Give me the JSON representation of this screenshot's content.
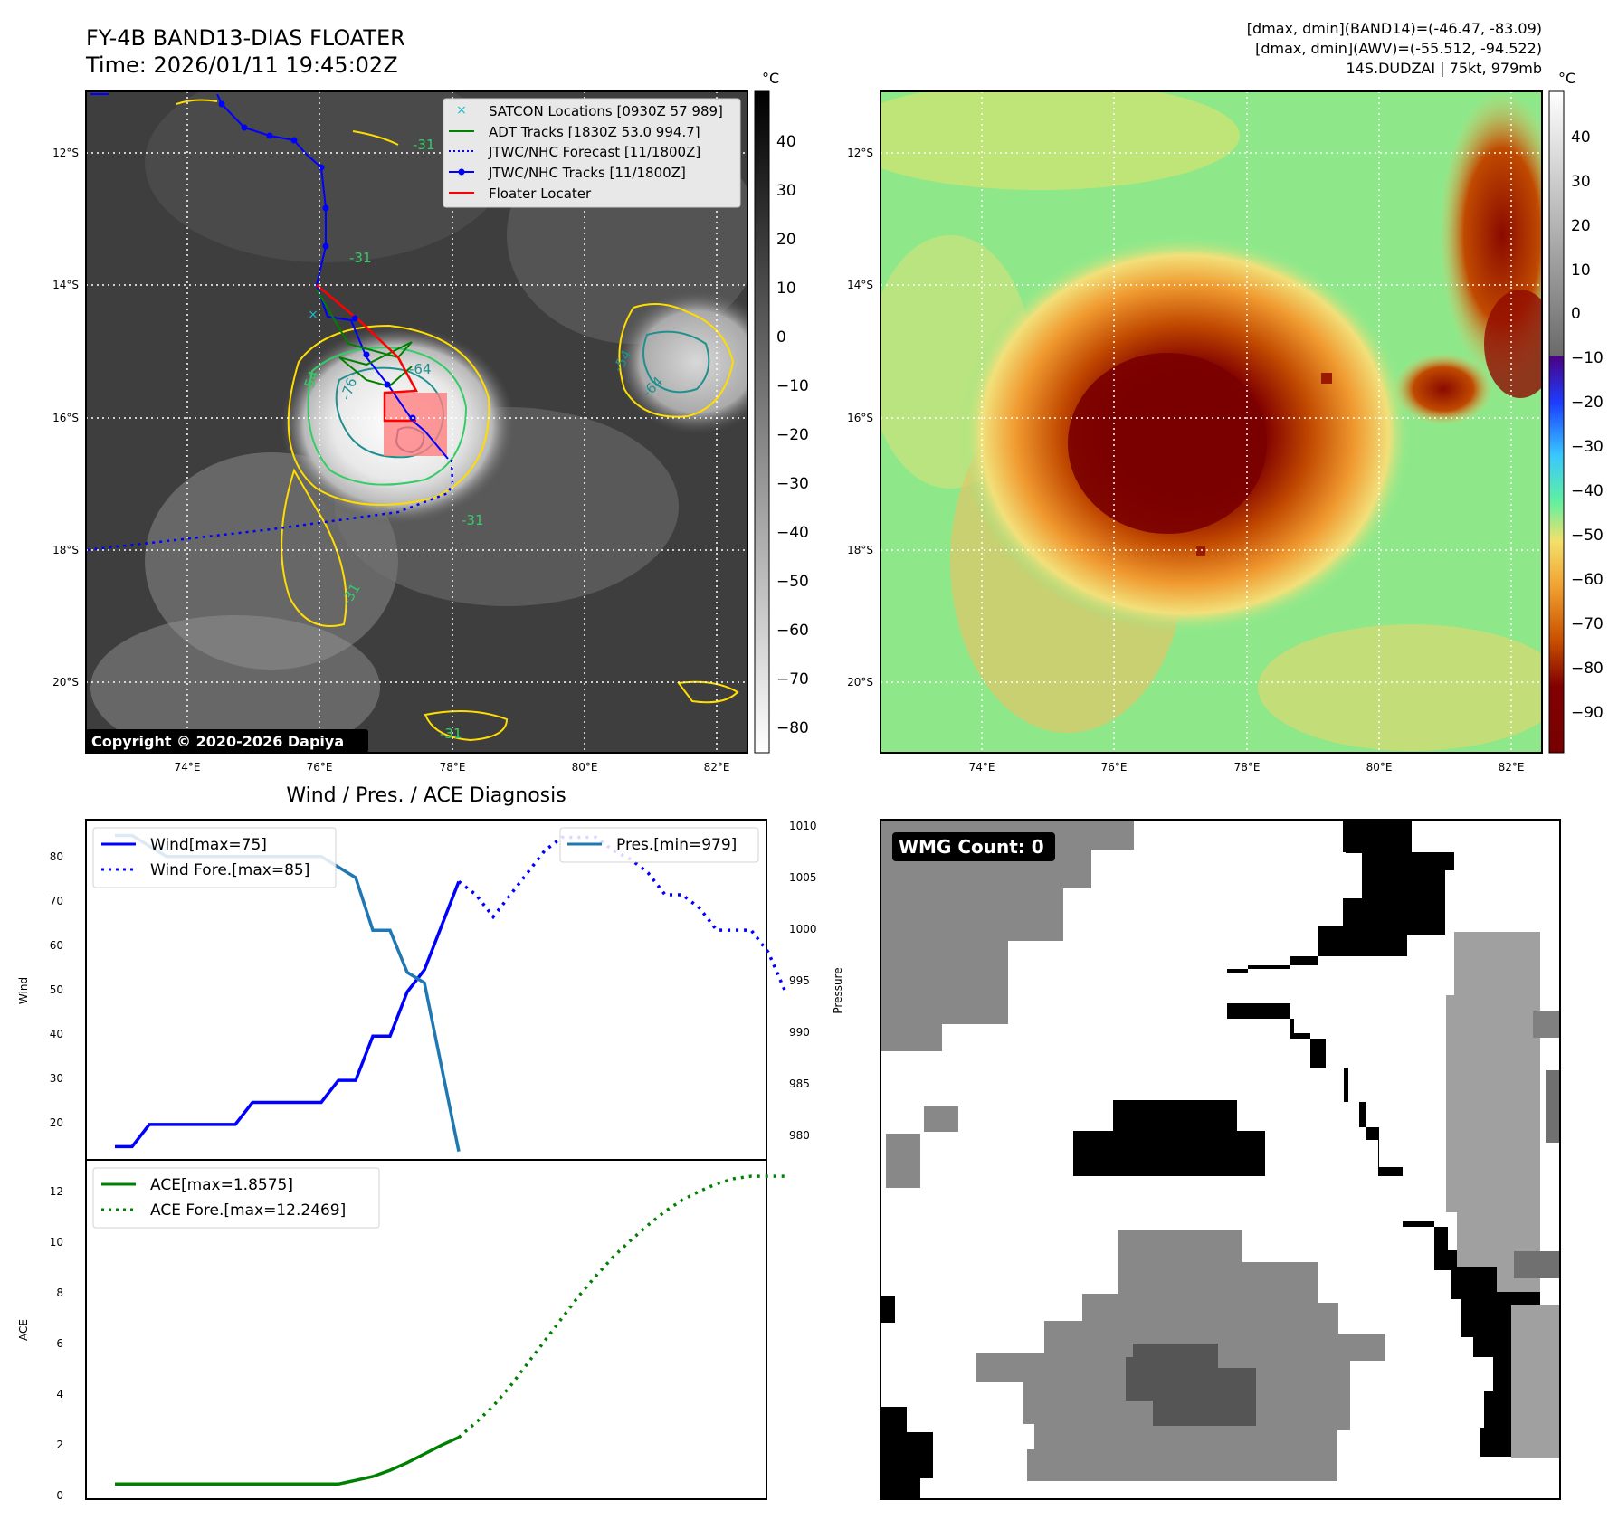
{
  "header": {
    "title": "FY-4B BAND13-DIAS FLOATER",
    "time": "Time: 2026/01/11 19:45:02Z",
    "info_line1": "[dmax, dmin](BAND14)=(-46.47, -83.09)",
    "info_line2": "[dmax, dmin](AWV)=(-55.512, -94.522)",
    "info_line3": "14S.DUDZAI | 75kt, 979mb"
  },
  "maps": {
    "lat_labels": [
      "12°S",
      "14°S",
      "16°S",
      "18°S",
      "20°S"
    ],
    "lon_labels": [
      "74°E",
      "76°E",
      "78°E",
      "80°E",
      "82°E"
    ],
    "copyright": "Copyright © 2020-2026 Dapiya",
    "contour_labels": [
      "-31",
      "-31",
      "-54",
      "-64",
      "-76",
      "-64",
      "-54",
      "-31",
      "-31",
      "-31"
    ],
    "legend": [
      {
        "label": "SATCON Locations [0930Z 57 989]",
        "color": "#17becf"
      },
      {
        "label": "ADT Tracks [1830Z 53.0 994.7]",
        "color": "#008000"
      },
      {
        "label": "JTWC/NHC Forecast [11/1800Z]",
        "color": "#0000ff"
      },
      {
        "label": "JTWC/NHC Tracks [11/1800Z]",
        "color": "#0000ff"
      },
      {
        "label": "Floater Locater",
        "color": "#ff0000"
      }
    ],
    "left_colorbar": {
      "unit": "°C",
      "ticks": [
        "40",
        "30",
        "20",
        "10",
        "0",
        "−10",
        "−20",
        "−30",
        "−40",
        "−50",
        "−60",
        "−70",
        "−80"
      ]
    },
    "right_colorbar": {
      "unit": "°C",
      "ticks": [
        "40",
        "30",
        "20",
        "10",
        "0",
        "−10",
        "−20",
        "−30",
        "−40",
        "−50",
        "−60",
        "−70",
        "−80",
        "−90"
      ]
    }
  },
  "diagnosis": {
    "title": "Wind / Pres. / ACE Diagnosis",
    "wind_ylabel": "Wind",
    "pres_ylabel": "Pressure",
    "ace_ylabel": "ACE",
    "legend_wind": "Wind[max=75]",
    "legend_wind_fore": "Wind Fore.[max=85]",
    "legend_pres": "Pres.[min=979]",
    "legend_ace": "ACE[max=1.8575]",
    "legend_ace_fore": "ACE Fore.[max=12.2469]",
    "wind_ticks": [
      "80",
      "70",
      "60",
      "50",
      "40",
      "30",
      "20"
    ],
    "pres_ticks": [
      "1010",
      "1005",
      "1000",
      "995",
      "990",
      "985",
      "980"
    ],
    "ace_ticks": [
      "12",
      "10",
      "8",
      "6",
      "4",
      "2",
      "0"
    ]
  },
  "wmg": {
    "label": "WMG Count: 0"
  },
  "chart_data": [
    {
      "type": "line",
      "title": "Wind / Pres. / ACE Diagnosis",
      "ylabel": "Wind",
      "ylim": [
        12,
        89
      ],
      "series": [
        {
          "name": "Wind[max=75]",
          "x": [
            0,
            1,
            2,
            3,
            4,
            5,
            6,
            7,
            8,
            9,
            10,
            11,
            12,
            13,
            14,
            15,
            16,
            17,
            18,
            19,
            20
          ],
          "values": [
            15,
            15,
            20,
            20,
            20,
            20,
            20,
            20,
            25,
            25,
            25,
            25,
            25,
            30,
            30,
            40,
            40,
            50,
            55,
            65,
            75
          ]
        },
        {
          "name": "Wind Fore.[max=85]",
          "x": [
            20,
            21,
            22,
            23,
            24,
            25,
            26,
            27,
            28,
            29,
            30,
            31,
            32,
            33,
            34,
            35,
            36,
            37,
            38,
            39
          ],
          "values": [
            75,
            72,
            67,
            72,
            77,
            82,
            85,
            85,
            85,
            82,
            80,
            77,
            72,
            72,
            69,
            64,
            64,
            64,
            59,
            50
          ]
        }
      ]
    },
    {
      "type": "line",
      "ylabel": "Pressure",
      "ylim": [
        978.2,
        1010.5
      ],
      "series": [
        {
          "name": "Pres.[min=979]",
          "x": [
            0,
            1,
            2,
            3,
            4,
            5,
            6,
            7,
            8,
            9,
            10,
            11,
            12,
            13,
            14,
            15,
            16,
            17,
            18,
            19,
            20
          ],
          "values": [
            1009,
            1009,
            1008,
            1007,
            1007,
            1007,
            1007,
            1007,
            1007,
            1007,
            1007,
            1007,
            1007,
            1006,
            1005,
            1000,
            1000,
            996,
            995,
            987,
            979
          ]
        }
      ]
    },
    {
      "type": "line",
      "ylabel": "ACE",
      "ylim": [
        -0.6,
        12.9
      ],
      "series": [
        {
          "name": "ACE[max=1.8575]",
          "x": [
            0,
            1,
            2,
            3,
            4,
            5,
            6,
            7,
            8,
            9,
            10,
            11,
            12,
            13,
            14,
            15,
            16,
            17,
            18,
            19,
            20
          ],
          "values": [
            0,
            0,
            0,
            0,
            0,
            0,
            0,
            0,
            0,
            0,
            0,
            0,
            0,
            0,
            0.15,
            0.3,
            0.55,
            0.85,
            1.2,
            1.55,
            1.8575
          ]
        },
        {
          "name": "ACE Fore.[max=12.2469]",
          "x": [
            20,
            21,
            22,
            23,
            24,
            25,
            26,
            27,
            28,
            29,
            30,
            31,
            32,
            33,
            34,
            35,
            36,
            37,
            38,
            39
          ],
          "values": [
            1.8575,
            2.45,
            3.1,
            3.9,
            4.8,
            5.7,
            6.6,
            7.5,
            8.3,
            9.05,
            9.7,
            10.3,
            10.85,
            11.3,
            11.65,
            11.95,
            12.15,
            12.2469,
            12.2469,
            12.2469
          ]
        }
      ]
    }
  ]
}
